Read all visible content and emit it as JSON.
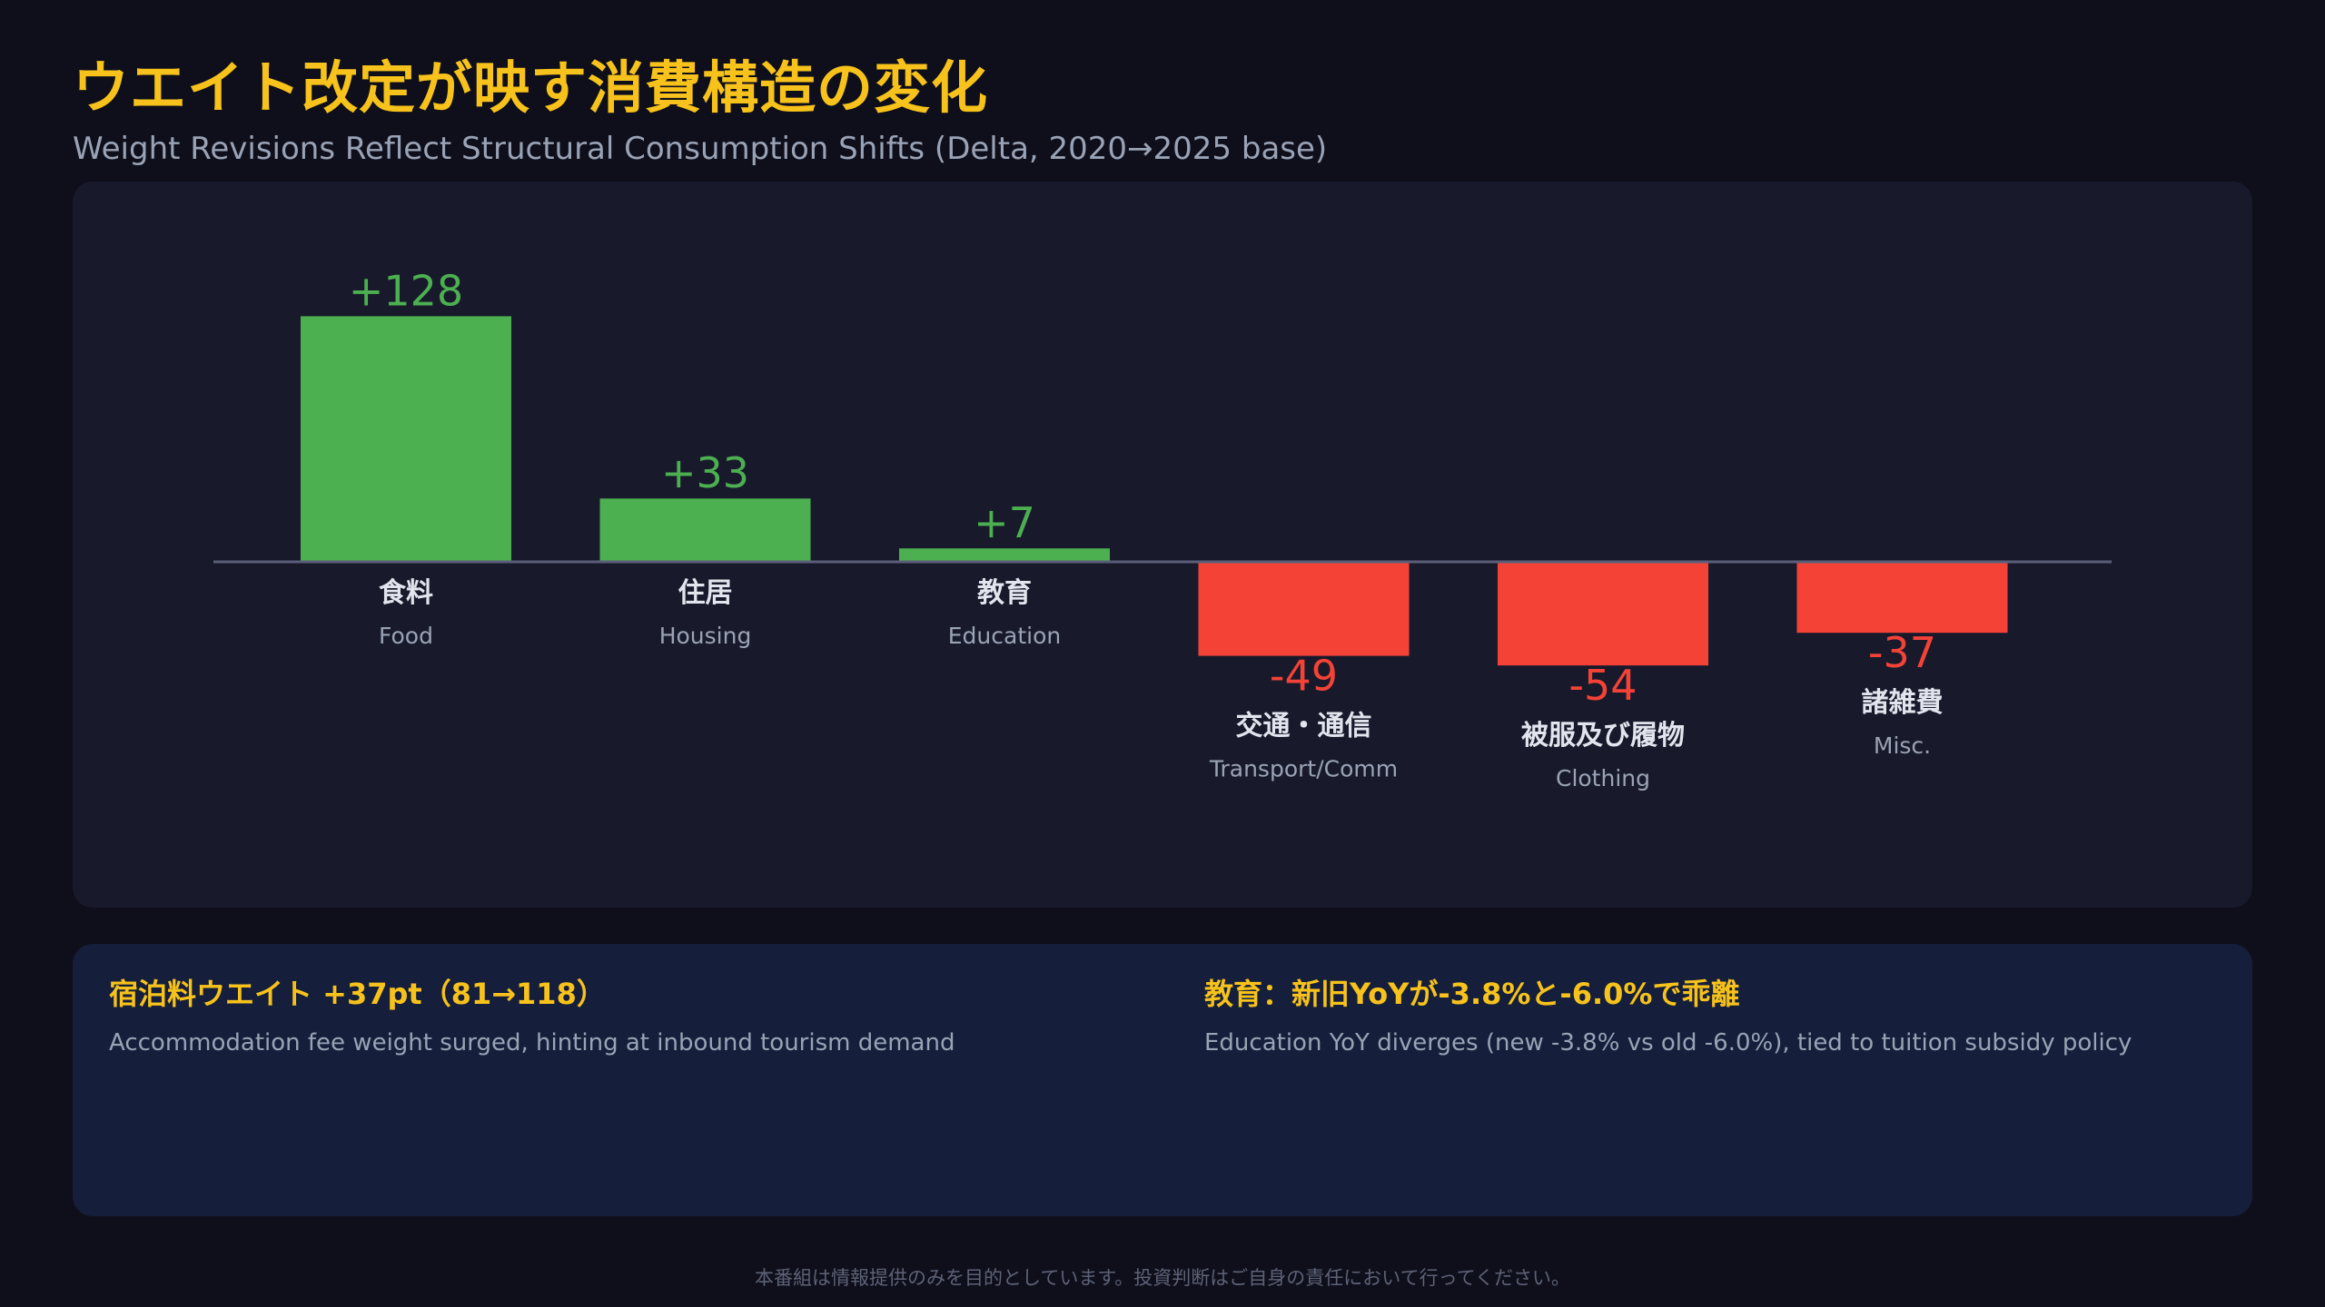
{
  "header": {
    "title": "ウエイト改定が映す消費構造の変化",
    "subtitle": "Weight Revisions Reflect Structural Consumption Shifts (Delta, 2020→2025 base)"
  },
  "colors": {
    "positive": "#4caf50",
    "negative": "#f44336",
    "baseline": "#5a5e78",
    "label_primary": "#e3e5ee",
    "label_secondary": "#9aa3b5"
  },
  "chart_data": {
    "type": "bar",
    "categories": [
      "食料",
      "住居",
      "教育",
      "交通・通信",
      "被服及び履物",
      "諸雑費"
    ],
    "categories_en": [
      "Food",
      "Housing",
      "Education",
      "Transport/Comm",
      "Clothing",
      "Misc."
    ],
    "values": [
      128,
      33,
      7,
      -49,
      -54,
      -37
    ],
    "value_labels": [
      "+128",
      "+33",
      "+7",
      "-49",
      "-54",
      "-37"
    ],
    "title": "",
    "xlabel": "",
    "ylabel": "",
    "ylim": [
      -54,
      128
    ],
    "grid": false,
    "baseline": 0
  },
  "notes": [
    {
      "title": "宿泊料ウエイト +37pt（81→118）",
      "body": "Accommodation fee weight surged, hinting at inbound tourism demand"
    },
    {
      "title": "教育：新旧YoYが-3.8%と-6.0%で乖離",
      "body": "Education YoY diverges (new -3.8% vs old -6.0%), tied to tuition subsidy policy"
    }
  ],
  "footer": {
    "disclaimer": "本番組は情報提供のみを目的としています。投資判断はご自身の責任において行ってください。"
  }
}
